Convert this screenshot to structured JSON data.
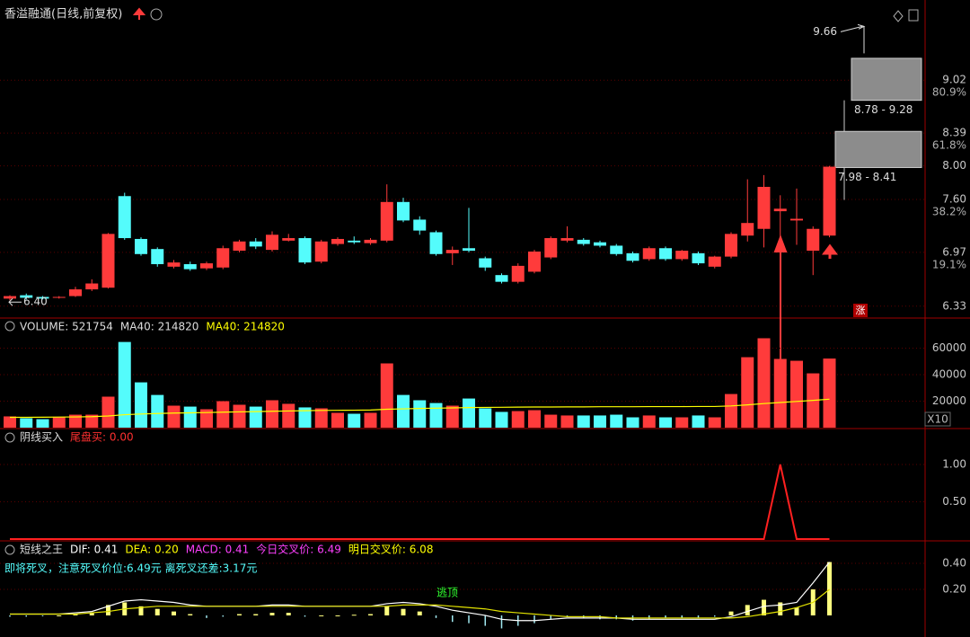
{
  "chart_data": [
    {
      "type": "candlestick",
      "title": "香溢融通(日线,前复权)",
      "up_color": "#ff3b3b",
      "down_color": "#54fcfc",
      "open": [
        6.42,
        6.46,
        6.44,
        6.43,
        6.45,
        6.53,
        6.55,
        7.64,
        7.13,
        7.01,
        6.8,
        6.83,
        6.78,
        6.79,
        6.99,
        7.1,
        7.0,
        7.11,
        7.14,
        6.86,
        7.07,
        7.11,
        7.08,
        7.11,
        7.57,
        7.36,
        7.21,
        6.96,
        7.02,
        6.9,
        6.7,
        6.62,
        6.74,
        6.91,
        7.11,
        7.12,
        7.09,
        7.05,
        6.96,
        6.89,
        7.02,
        6.89,
        6.96,
        6.8,
        6.92,
        7.17,
        7.25,
        7.46,
        7.35,
        6.99,
        7.17
      ],
      "close": [
        6.45,
        6.43,
        6.42,
        6.44,
        6.53,
        6.6,
        7.19,
        7.14,
        6.95,
        6.83,
        6.85,
        6.77,
        6.84,
        7.02,
        7.1,
        7.04,
        7.18,
        7.14,
        6.85,
        7.1,
        7.13,
        7.09,
        7.12,
        7.57,
        7.35,
        7.23,
        6.95,
        7.0,
        6.99,
        6.79,
        6.62,
        6.81,
        6.98,
        7.14,
        7.14,
        7.07,
        7.05,
        6.95,
        6.87,
        7.02,
        6.89,
        6.99,
        6.84,
        6.92,
        7.19,
        7.32,
        7.75,
        7.49,
        7.37,
        7.25,
        7.99
      ],
      "high": [
        6.46,
        6.48,
        6.45,
        6.45,
        6.56,
        6.65,
        7.2,
        7.68,
        7.15,
        7.03,
        6.88,
        6.86,
        6.86,
        7.05,
        7.12,
        7.14,
        7.22,
        7.19,
        7.16,
        7.12,
        7.15,
        7.16,
        7.14,
        7.78,
        7.62,
        7.4,
        7.23,
        7.04,
        7.5,
        6.92,
        6.72,
        6.84,
        7.0,
        7.16,
        7.28,
        7.14,
        7.11,
        7.07,
        6.98,
        7.04,
        7.04,
        7.0,
        6.98,
        6.93,
        7.21,
        7.84,
        7.89,
        7.65,
        7.73,
        7.28,
        8.0
      ],
      "low": [
        6.4,
        6.41,
        6.41,
        6.42,
        6.44,
        6.51,
        6.54,
        7.12,
        6.93,
        6.8,
        6.78,
        6.75,
        6.76,
        6.77,
        6.97,
        7.01,
        6.98,
        7.1,
        6.83,
        6.84,
        7.05,
        7.07,
        7.06,
        7.09,
        7.33,
        7.18,
        6.93,
        6.82,
        6.97,
        6.75,
        6.6,
        6.6,
        6.72,
        6.89,
        7.09,
        7.05,
        7.03,
        6.93,
        6.85,
        6.87,
        6.87,
        6.87,
        6.82,
        6.78,
        6.9,
        7.1,
        7.03,
        7.12,
        7.06,
        6.7,
        7.15
      ],
      "ylim": [
        6.21,
        9.76
      ],
      "yticks": [
        9.02,
        8.39,
        {
          "value": 8,
          "label": "8.00"
        },
        {
          "value": 7.6,
          "label": "7.60"
        },
        6.97,
        6.33
      ],
      "fib_ticks": [
        {
          "value": 9.02,
          "label": "80.9%"
        },
        {
          "value": 8.39,
          "label": "61.8%"
        },
        {
          "value": 7.6,
          "label": "38.2%"
        },
        {
          "value": 6.97,
          "label": "19.1%"
        }
      ],
      "zones": [
        {
          "low": 8.78,
          "high": 9.28,
          "label": "8.78 - 9.28"
        },
        {
          "low": 7.98,
          "high": 8.41,
          "label": "7.98 - 8.41"
        }
      ],
      "high_marker": {
        "value": 9.66,
        "label": "9.66"
      },
      "low_marker": {
        "value": 6.4,
        "label": "6.40"
      },
      "badge": "涨"
    },
    {
      "type": "bar",
      "legend": [
        {
          "text": "VOLUME: 521754",
          "color": "#dddddd"
        },
        {
          "text": "MA40: 214820",
          "color": "#dddddd"
        },
        {
          "text": "MA40: 214820",
          "color": "#ffff00"
        }
      ],
      "values": [
        8500,
        7100,
        6400,
        7800,
        9800,
        9800,
        23400,
        64700,
        34200,
        24700,
        16600,
        15900,
        13900,
        20000,
        17300,
        15900,
        20700,
        18000,
        15300,
        14600,
        11200,
        10500,
        11200,
        48500,
        24700,
        20700,
        18600,
        16600,
        22000,
        14600,
        11900,
        12500,
        13200,
        9800,
        9200,
        9200,
        9200,
        9800,
        7800,
        9200,
        7800,
        7800,
        9200,
        7800,
        25400,
        53200,
        67500,
        51900,
        50500,
        41000,
        52175
      ],
      "ma": [
        7800,
        7800,
        7900,
        8000,
        8100,
        8300,
        8800,
        9800,
        10300,
        10700,
        11000,
        11200,
        11400,
        11700,
        11900,
        12100,
        12400,
        12600,
        12800,
        13000,
        13100,
        13200,
        13300,
        13900,
        14200,
        14500,
        14700,
        14900,
        15200,
        15300,
        15400,
        15500,
        15600,
        15600,
        15700,
        15700,
        15800,
        15800,
        15800,
        15900,
        15900,
        15900,
        16000,
        16000,
        16400,
        17200,
        18200,
        19000,
        19800,
        20600,
        21482
      ],
      "ma_color": "#ffff00",
      "ylim": [
        0,
        81400
      ],
      "yticks": [
        60000,
        40000,
        20000
      ],
      "unit": "X10"
    },
    {
      "type": "line",
      "legend": [
        {
          "text": "阴线买入",
          "color": "#dddddd"
        },
        {
          "text": "尾盘买: 0.00",
          "color": "#ff3030"
        }
      ],
      "values": [
        0,
        0,
        0,
        0,
        0,
        0,
        0,
        0,
        0,
        0,
        0,
        0,
        0,
        0,
        0,
        0,
        0,
        0,
        0,
        0,
        0,
        0,
        0,
        0,
        0,
        0,
        0,
        0,
        0,
        0,
        0,
        0,
        0,
        0,
        0,
        0,
        0,
        0,
        0,
        0,
        0,
        0,
        0,
        0,
        0,
        0,
        0,
        1,
        0,
        0,
        0
      ],
      "color": "#ff2020",
      "ylim": [
        0,
        1.47
      ],
      "yticks": [
        {
          "value": 1,
          "label": "1.00"
        },
        {
          "value": 0.5,
          "label": "0.50"
        }
      ]
    },
    {
      "type": "macd",
      "legend": [
        {
          "text": "短线之王",
          "color": "#dddddd"
        },
        {
          "text": "DIF: 0.41",
          "color": "#ffffff"
        },
        {
          "text": "DEA: 0.20",
          "color": "#ffff00"
        },
        {
          "text": "MACD: 0.41",
          "color": "#ff40ff"
        },
        {
          "text": "今日交叉价: 6.49",
          "color": "#ff40ff"
        },
        {
          "text": "明日交叉价: 6.08",
          "color": "#ffff00"
        }
      ],
      "note": "即将死叉，注意死叉价位:6.49元  离死叉还差:3.17元",
      "tag": "逃顶",
      "macd": [
        -0.01,
        -0.01,
        -0.005,
        0,
        0.01,
        0.02,
        0.08,
        0.1,
        0.07,
        0.05,
        0.03,
        0.01,
        -0.02,
        -0.01,
        0.01,
        0.01,
        0.02,
        0.02,
        -0.01,
        0,
        0,
        0.005,
        0.01,
        0.07,
        0.05,
        0.03,
        -0.02,
        -0.05,
        -0.06,
        -0.08,
        -0.1,
        -0.08,
        -0.06,
        -0.03,
        -0.01,
        -0.02,
        -0.03,
        -0.03,
        -0.04,
        -0.03,
        -0.02,
        -0.02,
        -0.02,
        -0.01,
        0.03,
        0.08,
        0.12,
        0.1,
        0.06,
        0.2,
        0.41
      ],
      "dif": [
        0.01,
        0.01,
        0.01,
        0.01,
        0.02,
        0.03,
        0.07,
        0.11,
        0.12,
        0.11,
        0.1,
        0.08,
        0.07,
        0.07,
        0.07,
        0.07,
        0.08,
        0.08,
        0.07,
        0.07,
        0.07,
        0.07,
        0.07,
        0.09,
        0.1,
        0.09,
        0.07,
        0.04,
        0.02,
        0.0,
        -0.03,
        -0.04,
        -0.04,
        -0.03,
        -0.02,
        -0.02,
        -0.02,
        -0.02,
        -0.03,
        -0.03,
        -0.03,
        -0.03,
        -0.03,
        -0.03,
        -0.01,
        0.03,
        0.07,
        0.08,
        0.1,
        0.25,
        0.41
      ],
      "dea": [
        0.01,
        0.01,
        0.01,
        0.01,
        0.01,
        0.02,
        0.03,
        0.05,
        0.06,
        0.07,
        0.07,
        0.07,
        0.07,
        0.07,
        0.07,
        0.07,
        0.07,
        0.07,
        0.07,
        0.07,
        0.07,
        0.07,
        0.07,
        0.07,
        0.08,
        0.08,
        0.08,
        0.07,
        0.06,
        0.05,
        0.03,
        0.02,
        0.01,
        0.0,
        -0.01,
        -0.01,
        -0.01,
        -0.02,
        -0.02,
        -0.02,
        -0.02,
        -0.02,
        -0.02,
        -0.02,
        -0.02,
        -0.01,
        0.01,
        0.03,
        0.06,
        0.1,
        0.2
      ],
      "dif_color": "#ffffff",
      "dea_color": "#e0e000",
      "pos_color": "#ffff80",
      "neg_color": "#a0e8f0",
      "ylim": [
        -0.166,
        0.559
      ],
      "yticks": [
        {
          "value": 0.4,
          "label": "0.40"
        },
        {
          "value": 0.2,
          "label": "0.20"
        }
      ]
    }
  ]
}
